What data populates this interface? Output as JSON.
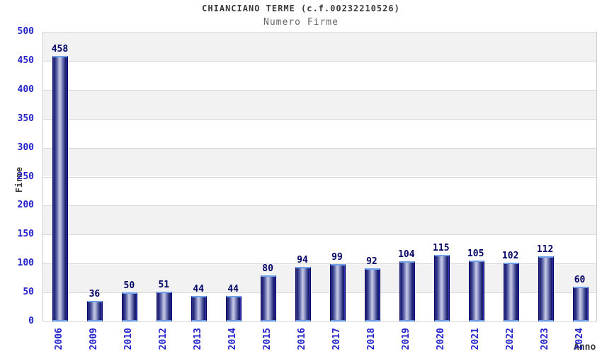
{
  "header": {
    "title": "CHIANCIANO TERME (c.f.00232210526)",
    "subtitle": "Numero Firme"
  },
  "chart_data": {
    "type": "bar",
    "title": "CHIANCIANO TERME (c.f.00232210526)",
    "subtitle": "Numero Firme",
    "xlabel": "Anno",
    "ylabel": "Firme",
    "categories": [
      "2006",
      "2009",
      "2010",
      "2012",
      "2013",
      "2014",
      "2015",
      "2016",
      "2017",
      "2018",
      "2019",
      "2020",
      "2021",
      "2022",
      "2023",
      "2024"
    ],
    "values": [
      458,
      36,
      50,
      51,
      44,
      44,
      80,
      94,
      99,
      92,
      104,
      115,
      105,
      102,
      112,
      60
    ],
    "ylim": [
      0,
      500
    ],
    "ytick_step": 50,
    "yticks": [
      0,
      50,
      100,
      150,
      200,
      250,
      300,
      350,
      400,
      450,
      500
    ],
    "grid": true,
    "legend_position": "none",
    "colors": {
      "tick_label": "#2323cc",
      "value_label": "#000066",
      "bar_border": "#000060",
      "bar_cap": "#6fa0ea",
      "bar_dark": "#1e1e6e",
      "bar_light": "#c7cae4",
      "band_gray": "#f2f2f2",
      "band_white": "#ffffff",
      "gridline": "#d9d9d9",
      "title_color": "#3a3a3a",
      "subtitle_color": "#666666"
    }
  }
}
